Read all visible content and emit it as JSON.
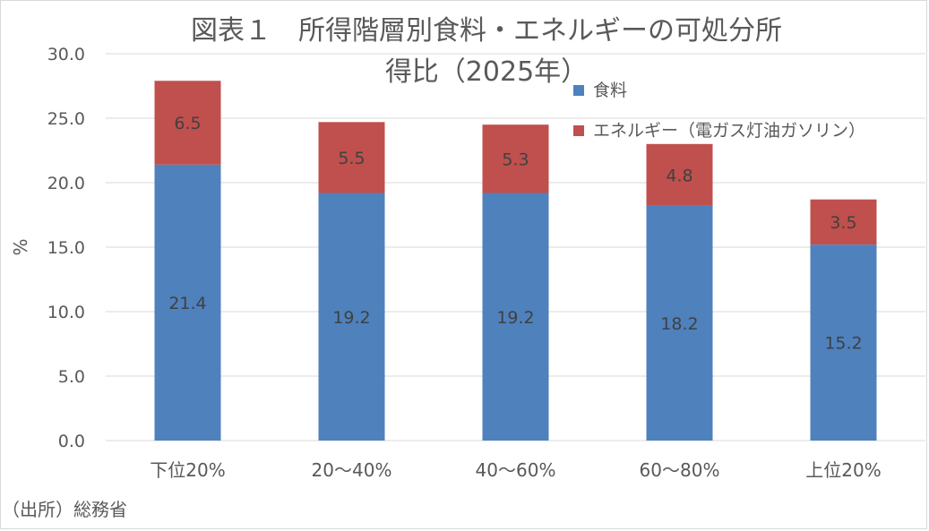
{
  "chart_data": {
    "type": "bar",
    "stacked": true,
    "title_lines": [
      "図表１　所得階層別食料・エネルギーの可処分所",
      "得比（2025年）"
    ],
    "ylabel": "%",
    "ylim": [
      0,
      30
    ],
    "yticks": [
      "0.0",
      "5.0",
      "10.0",
      "15.0",
      "20.0",
      "25.0",
      "30.0"
    ],
    "grid": true,
    "legend_position": "top-right",
    "categories": [
      "下位20%",
      "20～40%",
      "40～60%",
      "60～80%",
      "上位20%"
    ],
    "series": [
      {
        "name": "食料",
        "color": "#4f81bd",
        "values": [
          21.4,
          19.2,
          19.2,
          18.2,
          15.2
        ],
        "labels": [
          "21.4",
          "19.2",
          "19.2",
          "18.2",
          "15.2"
        ]
      },
      {
        "name": "エネルギー（電ガス灯油ガソリン）",
        "color": "#c0504d",
        "values": [
          6.5,
          5.5,
          5.3,
          4.8,
          3.5
        ],
        "labels": [
          "6.5",
          "5.5",
          "5.3",
          "4.8",
          "3.5"
        ]
      }
    ]
  },
  "source": "（出所）総務省"
}
